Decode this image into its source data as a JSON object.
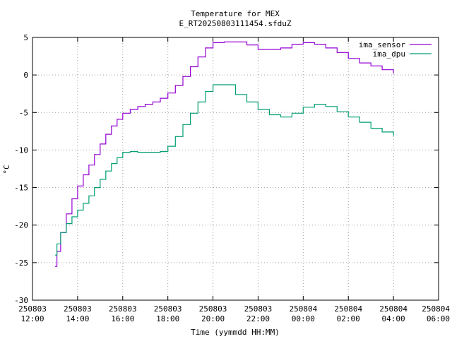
{
  "chart_data": {
    "type": "line",
    "title": "Temperature for MEX",
    "subtitle": "E_RT20250803111454.sfduZ",
    "xlabel": "Time (yymmdd HH:MM)",
    "ylabel": "°C",
    "xlim": [
      "250803 12:00",
      "250804 06:00"
    ],
    "ylim": [
      -30,
      5
    ],
    "grid": true,
    "legend": "top-right",
    "x_ticks": [
      {
        "top": "250803",
        "bottom": "12:00"
      },
      {
        "top": "250803",
        "bottom": "14:00"
      },
      {
        "top": "250803",
        "bottom": "16:00"
      },
      {
        "top": "250803",
        "bottom": "18:00"
      },
      {
        "top": "250803",
        "bottom": "20:00"
      },
      {
        "top": "250803",
        "bottom": "22:00"
      },
      {
        "top": "250804",
        "bottom": "00:00"
      },
      {
        "top": "250804",
        "bottom": "02:00"
      },
      {
        "top": "250804",
        "bottom": "04:00"
      },
      {
        "top": "250804",
        "bottom": "06:00"
      }
    ],
    "y_ticks": [
      -30,
      -25,
      -20,
      -15,
      -10,
      -5,
      0,
      5
    ],
    "series": [
      {
        "name": "ima_sensor",
        "color": "#9400d3",
        "x": [
          "250803 13:00",
          "250803 13:05",
          "250803 13:15",
          "250803 13:30",
          "250803 13:45",
          "250803 14:00",
          "250803 14:15",
          "250803 14:30",
          "250803 14:45",
          "250803 15:00",
          "250803 15:15",
          "250803 15:30",
          "250803 15:45",
          "250803 16:00",
          "250803 16:20",
          "250803 16:40",
          "250803 17:00",
          "250803 17:20",
          "250803 17:40",
          "250803 18:00",
          "250803 18:20",
          "250803 18:40",
          "250803 19:00",
          "250803 19:20",
          "250803 19:40",
          "250803 20:00",
          "250803 20:30",
          "250803 21:00",
          "250803 21:30",
          "250803 22:00",
          "250803 22:40",
          "250803 23:00",
          "250803 23:30",
          "250804 00:00",
          "250804 00:30",
          "250804 01:00",
          "250804 01:30",
          "250804 02:00",
          "250804 02:30",
          "250804 03:00",
          "250804 03:30",
          "250804 04:00"
        ],
        "y": [
          -25.5,
          -23.5,
          -21,
          -18.5,
          -16.5,
          -14.8,
          -13.3,
          -12,
          -10.6,
          -9.2,
          -7.9,
          -6.8,
          -5.9,
          -5.1,
          -4.6,
          -4.2,
          -3.9,
          -3.6,
          -3.1,
          -2.4,
          -1.4,
          -0.2,
          1.1,
          2.4,
          3.6,
          4.3,
          4.4,
          4.4,
          4.0,
          3.4,
          3.4,
          3.6,
          4.1,
          4.3,
          4.1,
          3.6,
          3.0,
          2.2,
          1.6,
          1.2,
          0.7,
          0.2
        ]
      },
      {
        "name": "ima_dpu",
        "color": "#009e73",
        "x": [
          "250803 13:00",
          "250803 13:05",
          "250803 13:15",
          "250803 13:30",
          "250803 13:45",
          "250803 14:00",
          "250803 14:15",
          "250803 14:30",
          "250803 14:45",
          "250803 15:00",
          "250803 15:15",
          "250803 15:30",
          "250803 15:45",
          "250803 16:00",
          "250803 16:20",
          "250803 16:40",
          "250803 17:00",
          "250803 17:20",
          "250803 17:40",
          "250803 18:00",
          "250803 18:20",
          "250803 18:40",
          "250803 19:00",
          "250803 19:20",
          "250803 19:40",
          "250803 20:00",
          "250803 20:30",
          "250803 21:00",
          "250803 21:30",
          "250803 22:00",
          "250803 22:30",
          "250803 23:00",
          "250803 23:30",
          "250804 00:00",
          "250804 00:30",
          "250804 01:00",
          "250804 01:30",
          "250804 02:00",
          "250804 02:30",
          "250804 03:00",
          "250804 03:30",
          "250804 04:00"
        ],
        "y": [
          -24,
          -22.5,
          -21,
          -19.8,
          -18.9,
          -18,
          -17.1,
          -16.1,
          -15,
          -13.9,
          -12.8,
          -11.8,
          -11,
          -10.3,
          -10.2,
          -10.3,
          -10.3,
          -10.3,
          -10.2,
          -9.5,
          -8.2,
          -6.6,
          -5.1,
          -3.6,
          -2.2,
          -1.3,
          -1.3,
          -2.6,
          -3.6,
          -4.6,
          -5.3,
          -5.6,
          -5.1,
          -4.3,
          -3.9,
          -4.2,
          -4.9,
          -5.6,
          -6.3,
          -7.1,
          -7.6,
          -8.1
        ]
      }
    ]
  }
}
